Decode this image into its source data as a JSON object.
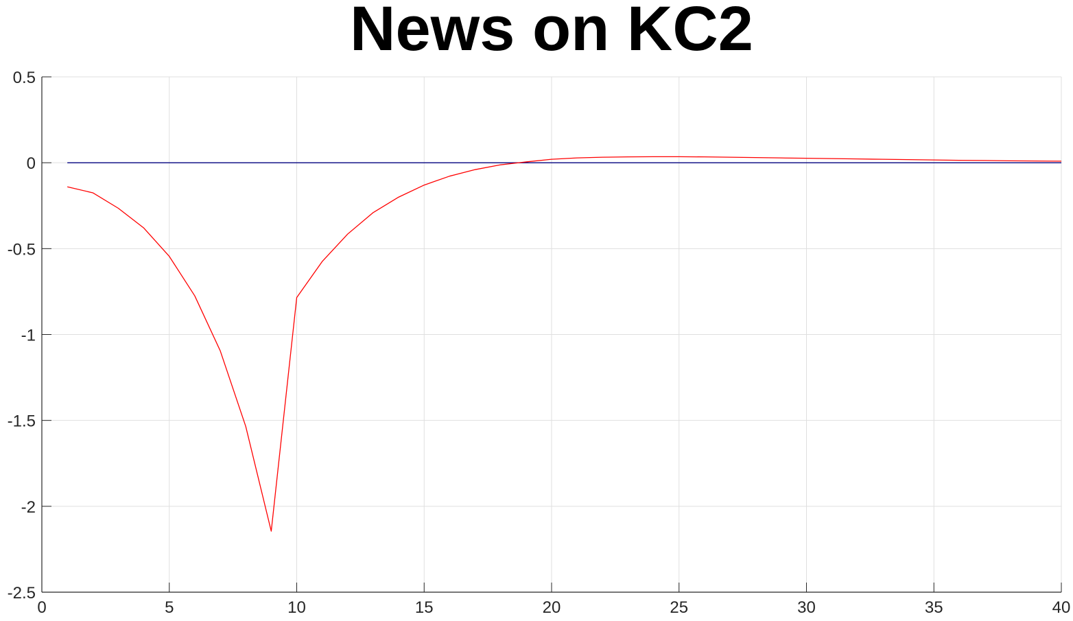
{
  "chart_data": {
    "type": "line",
    "title": "News on KC2",
    "xlabel": "",
    "ylabel": "",
    "xlim": [
      0,
      40
    ],
    "ylim": [
      -2.5,
      0.5
    ],
    "xticks": [
      0,
      5,
      10,
      15,
      20,
      25,
      30,
      35,
      40
    ],
    "xtick_labels": [
      "0",
      "5",
      "10",
      "15",
      "20",
      "25",
      "30",
      "35",
      "40"
    ],
    "yticks": [
      0.5,
      0,
      -0.5,
      -1,
      -1.5,
      -2,
      -2.5
    ],
    "ytick_labels": [
      "0.5",
      "0",
      "-0.5",
      "-1",
      "-1.5",
      "-2",
      "-2.5"
    ],
    "grid": true,
    "x": [
      1,
      2,
      3,
      4,
      5,
      6,
      7,
      8,
      9,
      10,
      11,
      12,
      13,
      14,
      15,
      16,
      17,
      18,
      19,
      20,
      21,
      22,
      23,
      24,
      25,
      26,
      27,
      28,
      29,
      30,
      31,
      32,
      33,
      34,
      35,
      36,
      37,
      38,
      39,
      40
    ],
    "series": [
      {
        "color": "#ff0000",
        "values": [
          -0.14,
          -0.175,
          -0.265,
          -0.38,
          -0.545,
          -0.775,
          -1.095,
          -1.535,
          -2.145,
          -0.785,
          -0.575,
          -0.415,
          -0.29,
          -0.2,
          -0.13,
          -0.078,
          -0.04,
          -0.012,
          0.005,
          0.02,
          0.028,
          0.032,
          0.034,
          0.035,
          0.035,
          0.034,
          0.032,
          0.03,
          0.028,
          0.026,
          0.024,
          0.022,
          0.02,
          0.018,
          0.016,
          0.014,
          0.013,
          0.011,
          0.01,
          0.009
        ]
      },
      {
        "color": "#00007f",
        "values": [
          0,
          0,
          0,
          0,
          0,
          0,
          0,
          0,
          0,
          0,
          0,
          0,
          0,
          0,
          0,
          0,
          0,
          0,
          0,
          0,
          0,
          0,
          0,
          0,
          0,
          0,
          0,
          0,
          0,
          0,
          0,
          0,
          0,
          0,
          0,
          0,
          0,
          0,
          0,
          0
        ]
      }
    ]
  }
}
